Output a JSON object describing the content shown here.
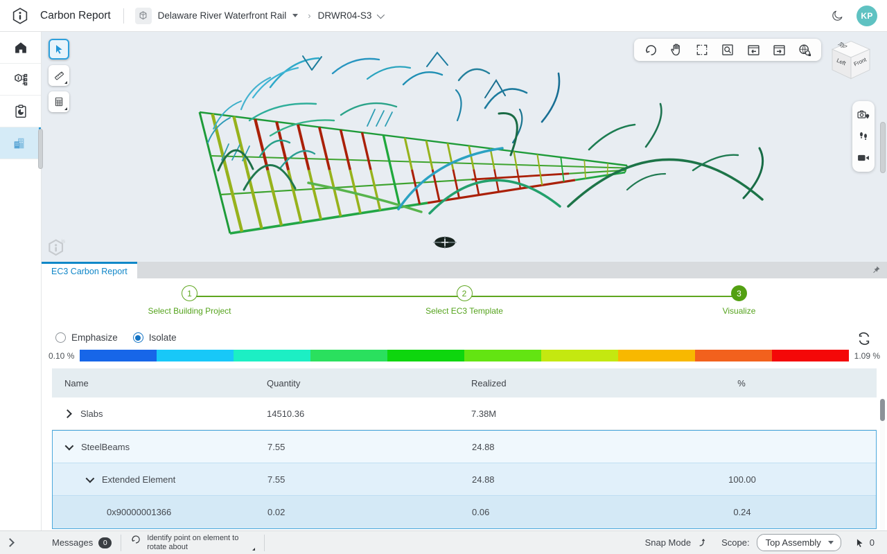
{
  "header": {
    "app_title": "Carbon Report",
    "project_name": "Delaware River Waterfront Rail",
    "model_name": "DRWR04-S3",
    "avatar_initials": "KP"
  },
  "viewport": {
    "view_cube": {
      "top": "Top",
      "left": "Left",
      "front": "Front"
    }
  },
  "panel": {
    "tab_label": "EC3 Carbon Report",
    "stepper": [
      {
        "num": "1",
        "label": "Select Building Project",
        "filled": false
      },
      {
        "num": "2",
        "label": "Select EC3 Template",
        "filled": false
      },
      {
        "num": "3",
        "label": "Visualize",
        "filled": true
      }
    ],
    "modes": [
      {
        "label": "Emphasize",
        "selected": false
      },
      {
        "label": "Isolate",
        "selected": true
      }
    ],
    "legend": {
      "min_label": "0.10 %",
      "max_label": "1.09 %",
      "colors": [
        "#1766e8",
        "#18c8f8",
        "#1cefc4",
        "#2ae05e",
        "#0ed60e",
        "#63e412",
        "#c4e810",
        "#f8b800",
        "#f2611d",
        "#f40808"
      ]
    },
    "table": {
      "columns": [
        "Name",
        "Quantity",
        "Realized",
        "%"
      ],
      "rows": [
        {
          "name": "Slabs",
          "quantity": "14510.36",
          "realized": "7.38M",
          "percent": "",
          "level": 0,
          "chevron": "right",
          "selected": false
        },
        {
          "name": "SteelBeams",
          "quantity": "7.55",
          "realized": "24.88",
          "percent": "",
          "level": 0,
          "chevron": "down",
          "selected": true
        },
        {
          "name": "Extended Element",
          "quantity": "7.55",
          "realized": "24.88",
          "percent": "100.00",
          "level": 1,
          "chevron": "down",
          "selected": true
        },
        {
          "name": "0x90000001366",
          "quantity": "0.02",
          "realized": "0.06",
          "percent": "0.24",
          "level": 2,
          "chevron": null,
          "selected": true
        }
      ]
    }
  },
  "statusbar": {
    "messages_label": "Messages",
    "messages_count": "0",
    "tool_prompt": "Identify point on element to rotate about",
    "snap_label": "Snap Mode",
    "scope_label": "Scope:",
    "scope_value": "Top Assembly",
    "selection_count": "0"
  },
  "colors": {
    "accent_blue": "#1088c8",
    "stepper_green": "#5ea61f",
    "avatar_teal": "#5fc2c2",
    "selection_border": "#4aa8dc"
  }
}
